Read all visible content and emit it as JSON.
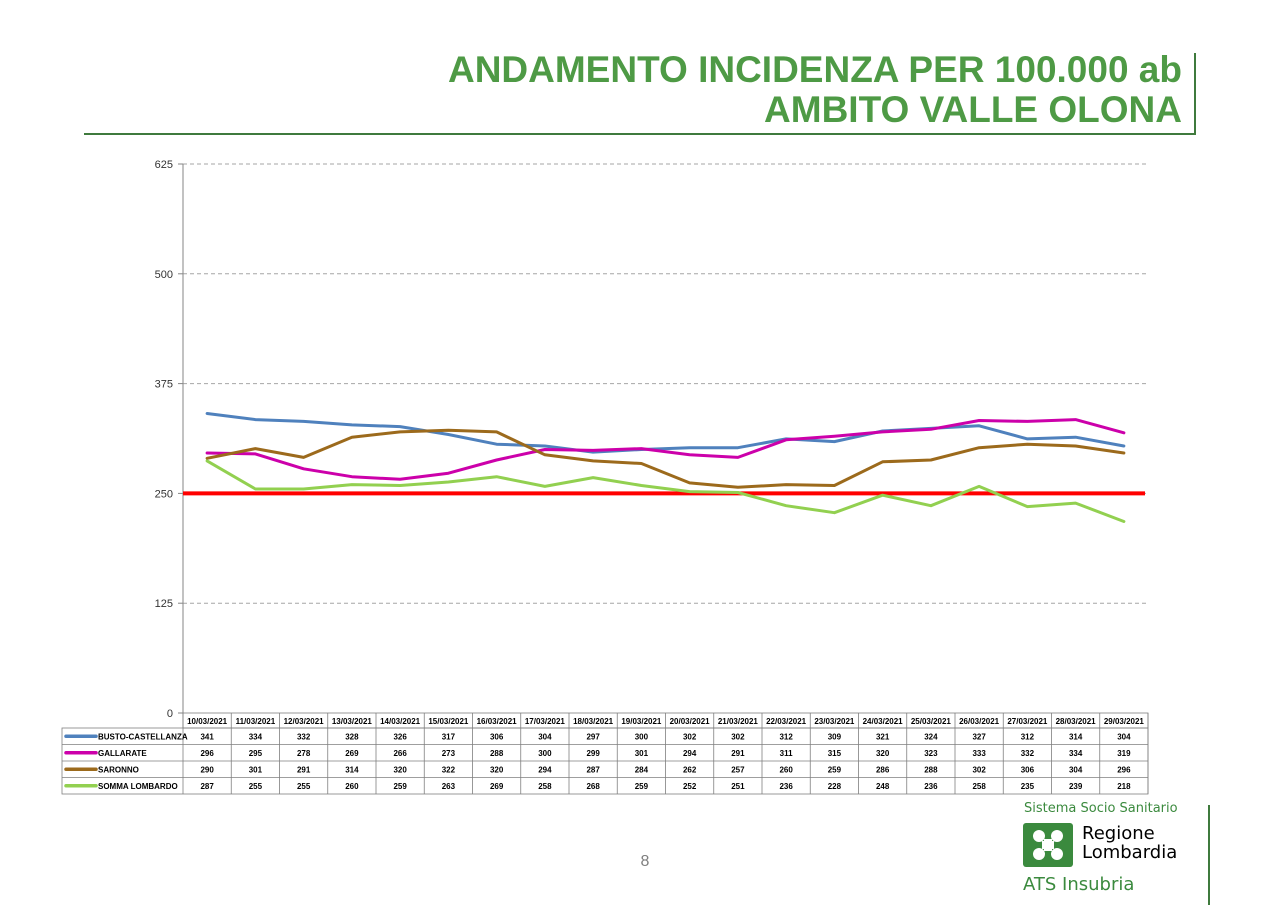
{
  "slide": {
    "title_line1": "ANDAMENTO INCIDENZA PER 100.000 ab",
    "title_line2": "AMBITO VALLE OLONA",
    "page_number": "8"
  },
  "logo": {
    "system": "Sistema Socio Sanitario",
    "region_line1": "Regione",
    "region_line2": "Lombardia",
    "ats": "ATS Insubria"
  },
  "colors": {
    "title": "#4e9a45",
    "threshold": "#ff0000",
    "logo_green": "#3b8a3e",
    "grid": "#a6a6a6"
  },
  "chart_data": {
    "type": "line",
    "title": "",
    "xlabel": "",
    "ylabel": "",
    "ylim": [
      0,
      625
    ],
    "yticks": [
      0,
      125,
      250,
      375,
      500,
      625
    ],
    "grid": true,
    "grid_style": "dashed",
    "legend": "data-table",
    "categories": [
      "10/03/2021",
      "11/03/2021",
      "12/03/2021",
      "13/03/2021",
      "14/03/2021",
      "15/03/2021",
      "16/03/2021",
      "17/03/2021",
      "18/03/2021",
      "19/03/2021",
      "20/03/2021",
      "21/03/2021",
      "22/03/2021",
      "23/03/2021",
      "24/03/2021",
      "25/03/2021",
      "26/03/2021",
      "27/03/2021",
      "28/03/2021",
      "29/03/2021"
    ],
    "series": [
      {
        "name": "BUSTO-CASTELLANZA",
        "color": "#4f81bd",
        "values": [
          341,
          334,
          332,
          328,
          326,
          317,
          306,
          304,
          297,
          300,
          302,
          302,
          312,
          309,
          321,
          324,
          327,
          312,
          314,
          304
        ]
      },
      {
        "name": "GALLARATE",
        "color": "#cc00aa",
        "values": [
          296,
          295,
          278,
          269,
          266,
          273,
          288,
          300,
          299,
          301,
          294,
          291,
          311,
          315,
          320,
          323,
          333,
          332,
          334,
          319
        ]
      },
      {
        "name": "SARONNO",
        "color": "#9c6a1c",
        "values": [
          290,
          301,
          291,
          314,
          320,
          322,
          320,
          294,
          287,
          284,
          262,
          257,
          260,
          259,
          286,
          288,
          302,
          306,
          304,
          296
        ]
      },
      {
        "name": "SOMMA LOMBARDO",
        "color": "#92d050",
        "values": [
          287,
          255,
          255,
          260,
          259,
          263,
          269,
          258,
          268,
          259,
          252,
          251,
          236,
          228,
          248,
          236,
          258,
          235,
          239,
          218
        ]
      }
    ],
    "threshold": {
      "value": 250,
      "color": "#ff0000"
    }
  }
}
